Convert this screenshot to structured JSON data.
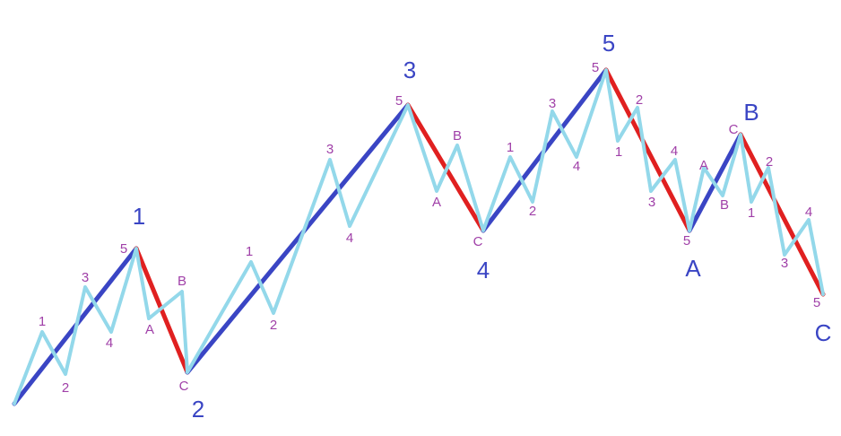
{
  "colors": {
    "impulse_line": "#3a45c4",
    "corrective_line": "#e02020",
    "subwave_line": "#93d8ea",
    "major_label": "#3a45c4",
    "minor_label": "#a040a8"
  },
  "major_labels": [
    "1",
    "2",
    "3",
    "4",
    "5",
    "A",
    "B",
    "C"
  ],
  "minor_labels": [
    "1",
    "2",
    "3",
    "4",
    "5",
    "A",
    "B",
    "C",
    "1",
    "2",
    "3",
    "4",
    "5",
    "A",
    "B",
    "C",
    "1",
    "2",
    "3",
    "4",
    "5",
    "1",
    "2",
    "3",
    "4",
    "5",
    "A",
    "B",
    "C",
    "1",
    "2",
    "3",
    "4",
    "5"
  ]
}
